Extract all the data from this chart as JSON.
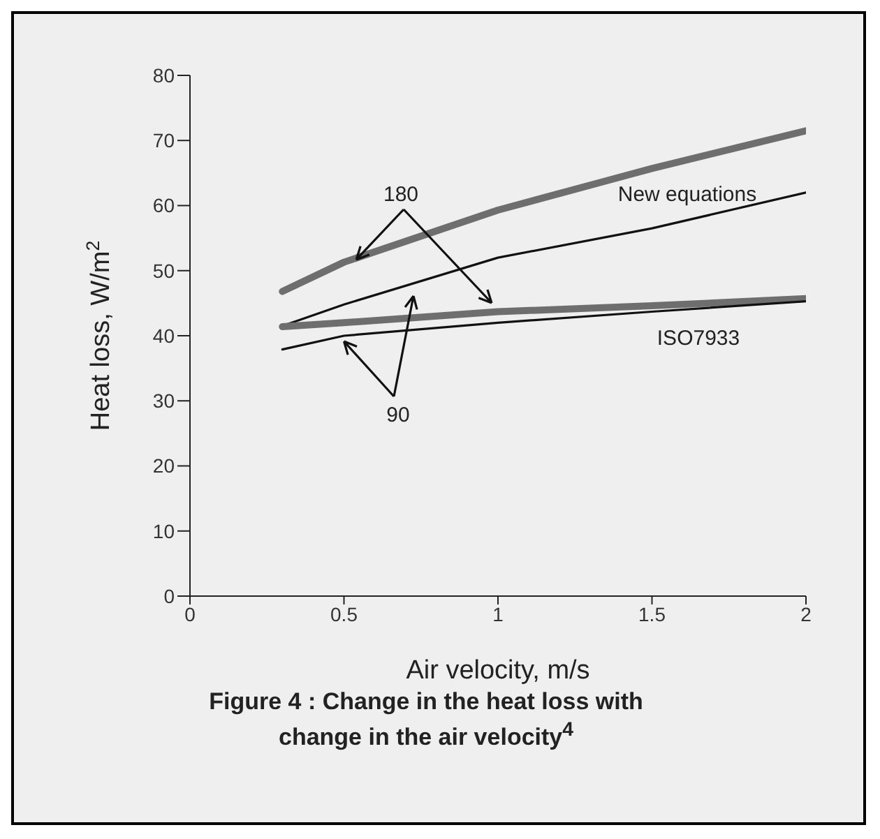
{
  "chart_data": {
    "type": "line",
    "xlabel": "Air velocity, m/s",
    "ylabel": "Heat loss, W/m$^{2}$",
    "x": [
      0.3,
      0.5,
      1,
      1.5,
      2
    ],
    "series": [
      {
        "color": "#6e6e6e",
        "values": [
          46.8,
          51.3,
          59.3,
          65.7,
          71.5
        ]
      },
      {
        "color": "#111111",
        "values": [
          41.5,
          44.8,
          52,
          56.5,
          62
        ]
      },
      {
        "color": "#6e6e6e",
        "values": [
          41.4,
          42,
          43.7,
          44.6,
          45.7
        ]
      },
      {
        "color": "#111111",
        "values": [
          37.9,
          40,
          42,
          43.7,
          45.3
        ]
      }
    ],
    "xlim": [
      0,
      2
    ],
    "xticks": [
      0,
      0.5,
      1,
      1.5,
      2
    ],
    "ylim": [
      0,
      80
    ],
    "yticks": [
      0,
      10,
      20,
      30,
      40,
      50,
      60,
      70,
      80
    ],
    "grid": false,
    "legend": false,
    "marker": "none",
    "line_style": "solid",
    "annotations": [
      {
        "text": "180",
        "x": 0.54,
        "y": 51.7
      },
      {
        "text": "90",
        "x": 0.5,
        "y": 40
      },
      "New equations",
      "ISO7933",
      "Figure 4 : Change in the heat loss with change in the air velocity$^{4}$"
    ]
  }
}
